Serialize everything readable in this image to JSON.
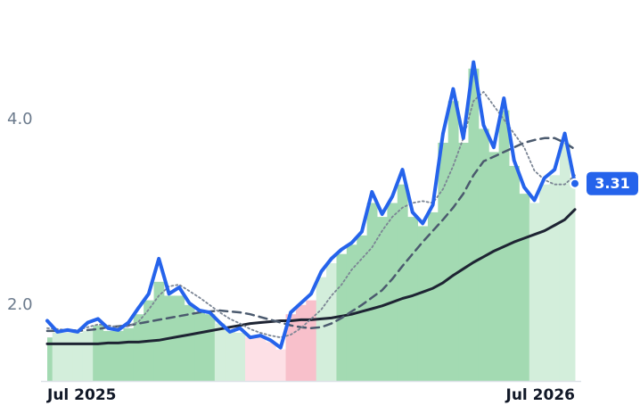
{
  "chart_data": {
    "type": "line",
    "categories": [
      "Jul 2025",
      null,
      null,
      null,
      null,
      null,
      null,
      null,
      null,
      null,
      null,
      null,
      null,
      null,
      null,
      null,
      null,
      null,
      null,
      null,
      null,
      null,
      null,
      null,
      null,
      null,
      null,
      null,
      null,
      null,
      null,
      null,
      null,
      null,
      null,
      null,
      null,
      null,
      null,
      null,
      null,
      null,
      null,
      null,
      null,
      null,
      null,
      null,
      null,
      null,
      null,
      null,
      "Jul 2026"
    ],
    "ylim": [
      1.18,
      5.29
    ],
    "yticks": [
      {
        "value": 2,
        "label": "2.0"
      },
      {
        "value": 4,
        "label": "4.0"
      }
    ],
    "band": {
      "values": [
        1.65,
        1.7,
        1.7,
        1.7,
        1.72,
        1.78,
        1.72,
        1.72,
        1.75,
        1.9,
        2.05,
        2.25,
        2.1,
        2.1,
        2.0,
        1.92,
        1.9,
        1.8,
        1.72,
        1.7,
        1.65,
        1.65,
        1.6,
        1.52,
        1.9,
        2.0,
        2.05,
        2.3,
        2.45,
        2.55,
        2.65,
        2.75,
        3.1,
        2.95,
        3.1,
        3.3,
        2.95,
        2.85,
        3.0,
        3.75,
        4.2,
        3.75,
        4.55,
        3.9,
        3.65,
        4.1,
        3.5,
        3.2,
        3.1,
        3.3,
        3.4,
        3.75,
        3.3
      ],
      "colors": [
        "#a3dab2",
        "#d3eedb",
        "#d3eedb",
        "#d3eedb",
        "#d3eedb",
        "#a3dab2",
        "#a3dab2",
        "#a3dab2",
        "#a3dab2",
        "#a3dab2",
        "#a3dab2",
        "#a3dab2",
        "#a3dab2",
        "#a3dab2",
        "#a3dab2",
        "#a3dab2",
        "#a3dab2",
        "#d3eedb",
        "#d3eedb",
        "#d3eedb",
        "#fde0e6",
        "#fde0e6",
        "#fde0e6",
        "#fde0e6",
        "#f8c0cb",
        "#f8c0cb",
        "#f8c0cb",
        "#d3eedb",
        "#d3eedb",
        "#a3dab2",
        "#a3dab2",
        "#a3dab2",
        "#a3dab2",
        "#a3dab2",
        "#a3dab2",
        "#a3dab2",
        "#a3dab2",
        "#a3dab2",
        "#a3dab2",
        "#a3dab2",
        "#a3dab2",
        "#a3dab2",
        "#a3dab2",
        "#a3dab2",
        "#a3dab2",
        "#a3dab2",
        "#a3dab2",
        "#a3dab2",
        "#d3eedb",
        "#d3eedb",
        "#d3eedb",
        "#d3eedb",
        "#d3eedb"
      ]
    },
    "series": [
      {
        "color": "#1e2433",
        "style": "solid",
        "width": 3,
        "values": [
          1.58,
          1.58,
          1.58,
          1.58,
          1.58,
          1.58,
          1.59,
          1.59,
          1.6,
          1.6,
          1.61,
          1.62,
          1.64,
          1.66,
          1.68,
          1.7,
          1.72,
          1.74,
          1.76,
          1.78,
          1.8,
          1.81,
          1.82,
          1.83,
          1.83,
          1.84,
          1.84,
          1.85,
          1.86,
          1.88,
          1.9,
          1.93,
          1.96,
          1.99,
          2.03,
          2.07,
          2.1,
          2.14,
          2.18,
          2.24,
          2.32,
          2.39,
          2.46,
          2.52,
          2.58,
          2.63,
          2.68,
          2.72,
          2.76,
          2.8,
          2.86,
          2.92,
          3.03
        ]
      },
      {
        "color": "#4b5a6e",
        "style": "dashed",
        "width": 2.5,
        "values": [
          1.72,
          1.72,
          1.72,
          1.72,
          1.73,
          1.74,
          1.76,
          1.77,
          1.78,
          1.8,
          1.82,
          1.84,
          1.86,
          1.88,
          1.9,
          1.92,
          1.93,
          1.94,
          1.93,
          1.92,
          1.9,
          1.87,
          1.84,
          1.81,
          1.78,
          1.76,
          1.75,
          1.76,
          1.8,
          1.86,
          1.93,
          2.0,
          2.08,
          2.16,
          2.28,
          2.42,
          2.55,
          2.68,
          2.8,
          2.92,
          3.05,
          3.2,
          3.4,
          3.55,
          3.6,
          3.65,
          3.7,
          3.75,
          3.78,
          3.8,
          3.8,
          3.75,
          3.68
        ]
      },
      {
        "color": "#7b8594",
        "style": "dotted",
        "width": 1.8,
        "values": [
          1.75,
          1.74,
          1.73,
          1.73,
          1.76,
          1.79,
          1.78,
          1.76,
          1.77,
          1.82,
          1.95,
          2.1,
          2.2,
          2.22,
          2.15,
          2.08,
          2.0,
          1.92,
          1.85,
          1.8,
          1.74,
          1.7,
          1.67,
          1.65,
          1.68,
          1.75,
          1.85,
          1.95,
          2.1,
          2.22,
          2.38,
          2.5,
          2.62,
          2.8,
          2.95,
          3.05,
          3.1,
          3.12,
          3.1,
          3.25,
          3.5,
          3.8,
          4.2,
          4.3,
          4.15,
          4.0,
          3.85,
          3.7,
          3.45,
          3.35,
          3.3,
          3.3,
          3.4
        ]
      },
      {
        "color": "#2563eb",
        "style": "solid",
        "width": 4,
        "last_label": true,
        "values": [
          1.83,
          1.71,
          1.73,
          1.71,
          1.81,
          1.85,
          1.75,
          1.73,
          1.81,
          1.97,
          2.12,
          2.5,
          2.12,
          2.19,
          2.02,
          1.94,
          1.92,
          1.81,
          1.71,
          1.75,
          1.65,
          1.67,
          1.62,
          1.54,
          1.92,
          2.02,
          2.12,
          2.36,
          2.5,
          2.6,
          2.67,
          2.79,
          3.22,
          2.98,
          3.17,
          3.46,
          3.0,
          2.88,
          3.08,
          3.85,
          4.33,
          3.8,
          4.62,
          3.94,
          3.7,
          4.23,
          3.56,
          3.27,
          3.13,
          3.37,
          3.46,
          3.85,
          3.31
        ]
      }
    ]
  }
}
